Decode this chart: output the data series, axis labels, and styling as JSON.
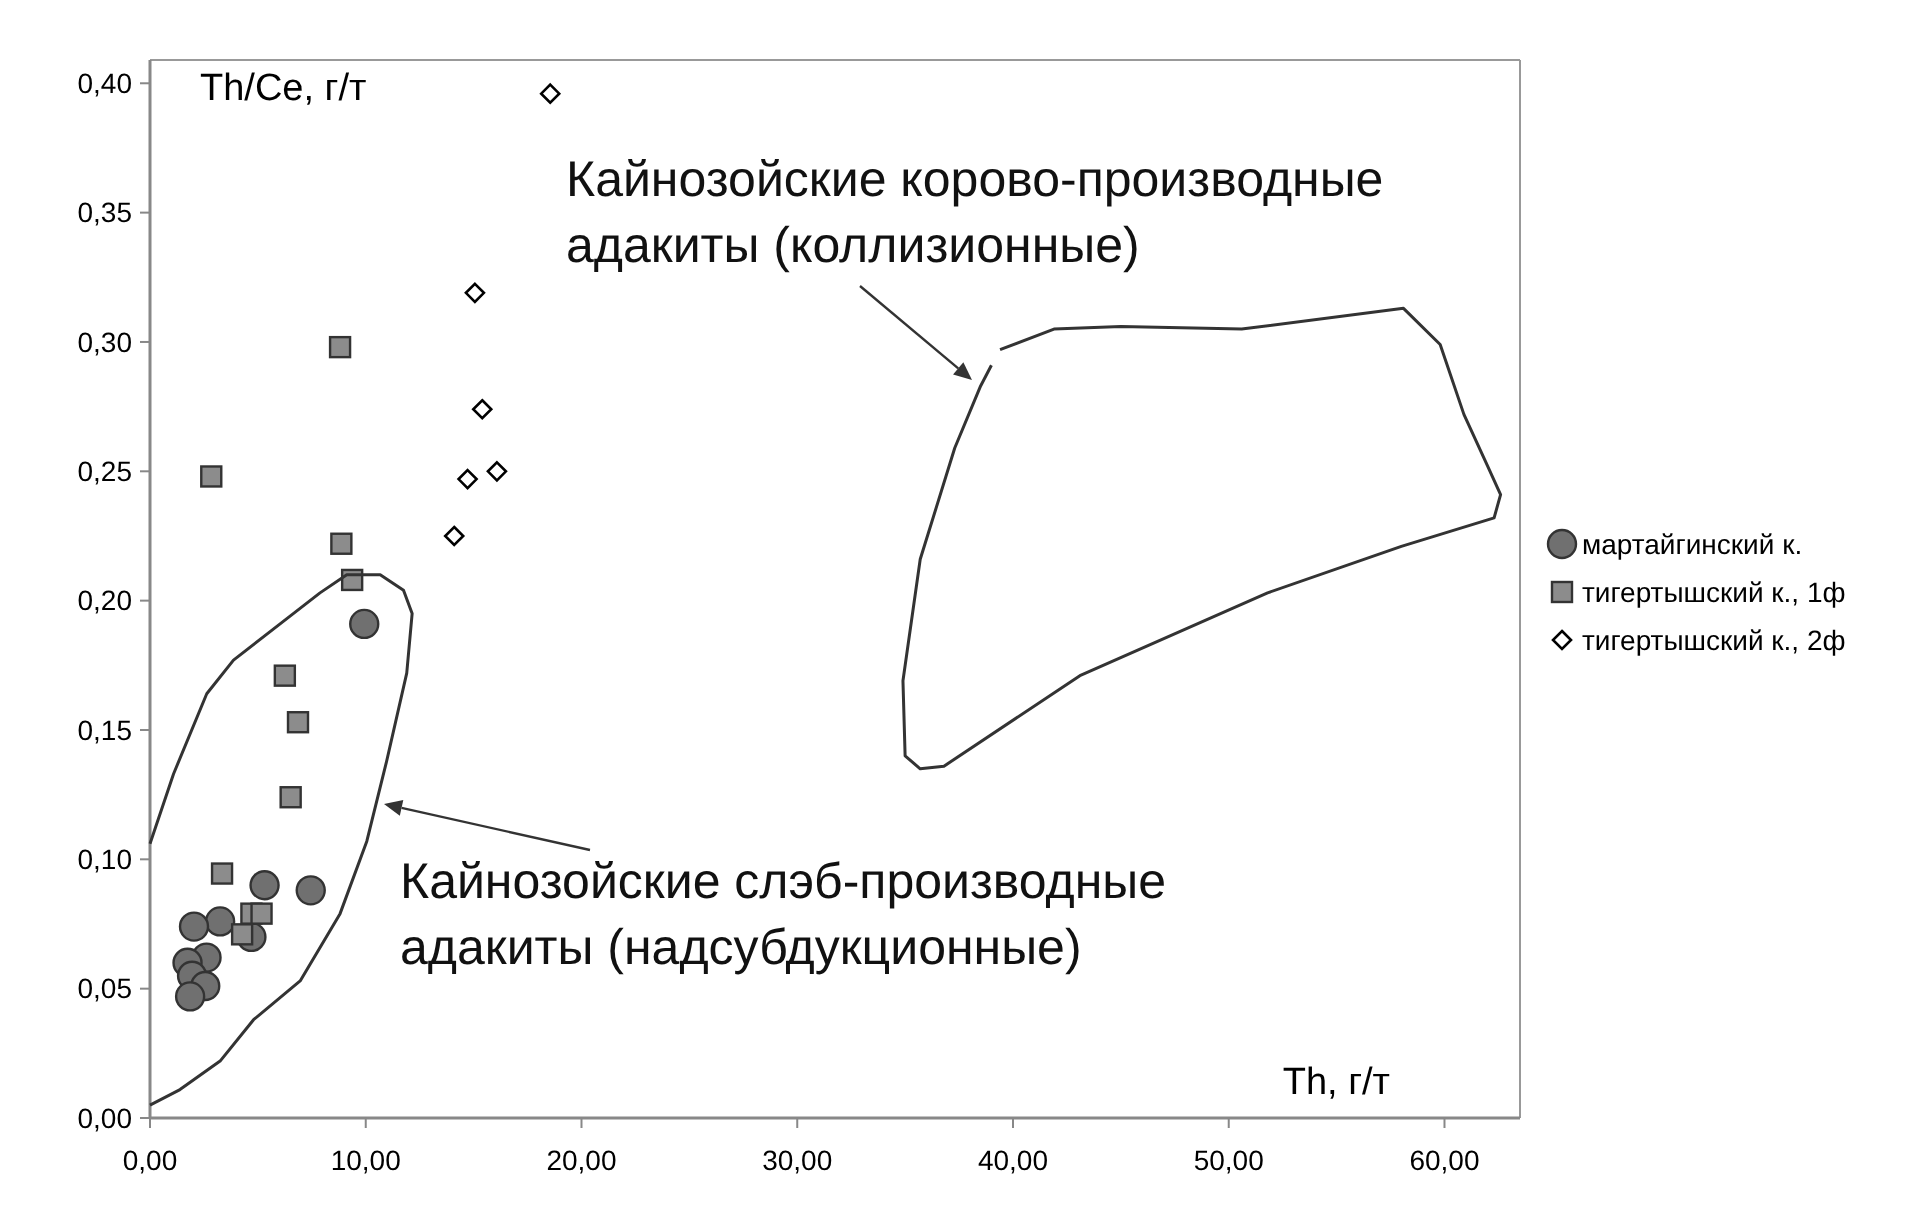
{
  "chart_data": {
    "type": "scatter",
    "xlabel": "Th, г/т",
    "ylabel": "Th/Ce, г/т",
    "xlim": [
      0,
      63.5
    ],
    "ylim": [
      0,
      0.409
    ],
    "xticks": [
      {
        "value": 0,
        "label": "0,00"
      },
      {
        "value": 10,
        "label": "10,00"
      },
      {
        "value": 20,
        "label": "20,00"
      },
      {
        "value": 30,
        "label": "30,00"
      },
      {
        "value": 40,
        "label": "40,00"
      },
      {
        "value": 50,
        "label": "50,00"
      },
      {
        "value": 60,
        "label": "60,00"
      }
    ],
    "yticks": [
      {
        "value": 0,
        "label": "0,00"
      },
      {
        "value": 0.05,
        "label": "0,05"
      },
      {
        "value": 0.1,
        "label": "0,10"
      },
      {
        "value": 0.15,
        "label": "0,15"
      },
      {
        "value": 0.2,
        "label": "0,20"
      },
      {
        "value": 0.25,
        "label": "0,25"
      },
      {
        "value": 0.3,
        "label": "0,30"
      },
      {
        "value": 0.35,
        "label": "0,35"
      },
      {
        "value": 0.4,
        "label": "0,40"
      }
    ],
    "grid": false,
    "legend": "right",
    "series": [
      {
        "name": "мартайгинский к.",
        "marker": "circle",
        "color": "#707070",
        "x": [
          9.93,
          5.31,
          7.45,
          3.25,
          2.04,
          4.7,
          2.62,
          1.74,
          1.95,
          2.56,
          1.86
        ],
        "values": [
          0.191,
          0.09,
          0.088,
          0.076,
          0.074,
          0.07,
          0.062,
          0.06,
          0.055,
          0.051,
          0.047
        ]
      },
      {
        "name": "тигертышский к., 1ф",
        "marker": "square",
        "color": "#8c8c8c",
        "x": [
          2.84,
          8.81,
          8.87,
          9.37,
          6.25,
          6.86,
          6.52,
          3.34,
          4.7,
          5.17,
          4.27
        ],
        "values": [
          0.248,
          0.298,
          0.222,
          0.208,
          0.171,
          0.153,
          0.124,
          0.0945,
          0.079,
          0.079,
          0.071
        ]
      },
      {
        "name": "тигертышский к., 2ф",
        "marker": "diamond",
        "color": "#ffffff",
        "x": [
          18.55,
          15.06,
          15.4,
          14.72,
          16.08,
          14.1
        ],
        "values": [
          0.396,
          0.319,
          0.274,
          0.247,
          0.25,
          0.225
        ]
      },
      {
        "type": "line",
        "marker": "none",
        "line_style": "solid",
        "color": "#333333",
        "x": [
          0,
          1.09,
          2.63,
          3.87,
          6.03,
          7.88,
          9.12,
          10.67,
          11.75,
          12.15,
          11.9,
          10.97,
          10.05,
          8.81,
          6.96,
          4.8,
          3.25,
          1.39,
          0
        ],
        "values": [
          0.106,
          0.133,
          0.164,
          0.177,
          0.191,
          0.203,
          0.21,
          0.21,
          0.204,
          0.195,
          0.172,
          0.138,
          0.107,
          0.079,
          0.053,
          0.038,
          0.022,
          0.011,
          0.005
        ]
      },
      {
        "type": "line",
        "marker": "none",
        "line_style": "solid",
        "color": "#333333",
        "x": [
          39.4,
          41.9,
          45.0,
          50.6,
          58.1,
          59.8,
          60.9,
          62.0,
          62.6,
          62.3,
          58.0,
          51.8,
          43.1,
          36.8,
          35.7,
          35.0,
          34.9,
          35.7,
          37.3,
          38.5,
          39.0
        ],
        "values": [
          0.297,
          0.305,
          0.306,
          0.305,
          0.313,
          0.299,
          0.272,
          0.252,
          0.241,
          0.232,
          0.221,
          0.203,
          0.171,
          0.136,
          0.135,
          0.14,
          0.169,
          0.216,
          0.259,
          0.283,
          0.291
        ]
      }
    ],
    "annotations": [
      "Кайнозойские корово-производные\nадакиты (коллизионные)",
      "Кайнозойские слэб-производные\nадакиты (надсубдукционные)"
    ]
  }
}
